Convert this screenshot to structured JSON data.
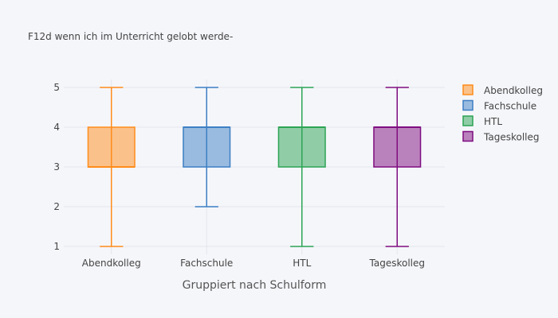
{
  "chart_data": {
    "type": "box",
    "title": "F12d wenn ich im Unterricht gelobt werde-",
    "xlabel": "Gruppiert nach Schulform",
    "ylabel": "",
    "ylim": [
      0.8,
      5.2
    ],
    "yticks": [
      1,
      2,
      3,
      4,
      5
    ],
    "categories": [
      "Abendkolleg",
      "Fachschule",
      "HTL",
      "Tageskolleg"
    ],
    "legend_position": "top-right",
    "series": [
      {
        "name": "Abendkolleg",
        "color": "#ff8c1a",
        "min": 1,
        "q1": 3,
        "median": 3,
        "q3": 4,
        "max": 5
      },
      {
        "name": "Fachschule",
        "color": "#3d7fc4",
        "min": 2,
        "q1": 3,
        "median": 4,
        "q3": 4,
        "max": 5
      },
      {
        "name": "HTL",
        "color": "#2ca454",
        "min": 1,
        "q1": 3,
        "median": 4,
        "q3": 4,
        "max": 5
      },
      {
        "name": "Tageskolleg",
        "color": "#7f0d80",
        "min": 1,
        "q1": 3,
        "median": 4,
        "q3": 4,
        "max": 5
      }
    ]
  }
}
